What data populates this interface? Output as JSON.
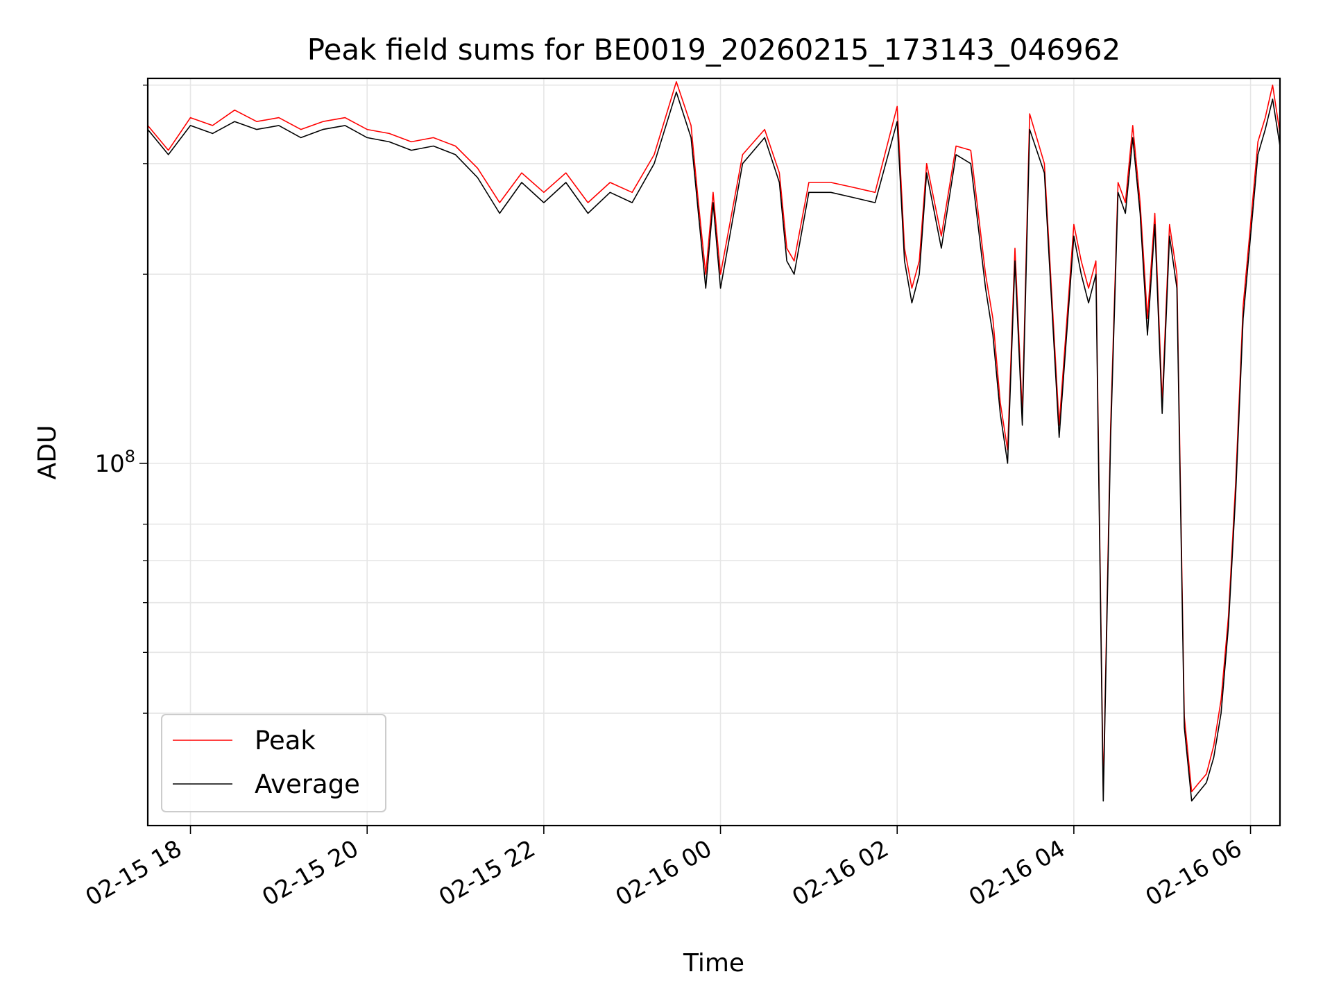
{
  "chart_data": {
    "type": "line",
    "title": "Peak field sums for BE0019_20260215_173143_046962",
    "xlabel": "Time",
    "ylabel": "ADU",
    "y_scale": "log",
    "ylim": [
      26500000,
      410000000
    ],
    "xlim": [
      "2026-02-15 17:31",
      "2026-02-16 06:20"
    ],
    "x_tick_labels": [
      "02-15 18",
      "02-15 20",
      "02-15 22",
      "02-16 00",
      "02-16 02",
      "02-16 04",
      "02-16 06"
    ],
    "x_ticks": [
      "2026-02-15 18:00",
      "2026-02-15 20:00",
      "2026-02-15 22:00",
      "2026-02-16 00:00",
      "2026-02-16 02:00",
      "2026-02-16 04:00",
      "2026-02-16 06:00"
    ],
    "y_tick_major": [
      {
        "value": 100000000,
        "base": "10",
        "exponent": "8"
      }
    ],
    "y_tick_minor": [
      40000000,
      50000000,
      60000000,
      70000000,
      80000000,
      200000000,
      300000000,
      400000000
    ],
    "grid": true,
    "legend_position": "lower-left",
    "series": [
      {
        "name": "Peak",
        "color": "#ff0000"
      },
      {
        "name": "Average",
        "color": "#000000"
      }
    ],
    "x": [
      "17:31",
      "17:45",
      "18:00",
      "18:15",
      "18:30",
      "18:45",
      "19:00",
      "19:15",
      "19:30",
      "19:45",
      "20:00",
      "20:15",
      "20:30",
      "20:45",
      "21:00",
      "21:15",
      "21:30",
      "21:45",
      "22:00",
      "22:15",
      "22:30",
      "22:45",
      "23:00",
      "23:15",
      "23:30",
      "23:40",
      "23:45",
      "23:50",
      "23:55",
      "00:00",
      "00:15",
      "00:30",
      "00:40",
      "00:45",
      "00:50",
      "01:00",
      "01:15",
      "01:30",
      "01:45",
      "02:00",
      "02:05",
      "02:10",
      "02:15",
      "02:20",
      "02:30",
      "02:40",
      "02:50",
      "03:00",
      "03:05",
      "03:10",
      "03:15",
      "03:20",
      "03:25",
      "03:30",
      "03:40",
      "03:50",
      "04:00",
      "04:05",
      "04:10",
      "04:15",
      "04:20",
      "04:25",
      "04:30",
      "04:35",
      "04:40",
      "04:45",
      "04:50",
      "04:55",
      "05:00",
      "05:05",
      "05:10",
      "05:15",
      "05:20",
      "05:25",
      "05:30",
      "05:35",
      "05:40",
      "05:45",
      "05:50",
      "05:55",
      "06:00",
      "06:05",
      "06:10",
      "06:15",
      "06:20"
    ],
    "average": [
      340000000,
      310000000,
      345000000,
      335000000,
      350000000,
      340000000,
      345000000,
      330000000,
      340000000,
      345000000,
      330000000,
      325000000,
      315000000,
      320000000,
      310000000,
      285000000,
      250000000,
      280000000,
      260000000,
      280000000,
      250000000,
      270000000,
      260000000,
      300000000,
      390000000,
      330000000,
      250000000,
      190000000,
      260000000,
      190000000,
      300000000,
      330000000,
      280000000,
      210000000,
      200000000,
      270000000,
      270000000,
      265000000,
      260000000,
      350000000,
      210000000,
      180000000,
      200000000,
      290000000,
      220000000,
      310000000,
      300000000,
      190000000,
      160000000,
      120000000,
      100000000,
      210000000,
      115000000,
      340000000,
      290000000,
      110000000,
      230000000,
      200000000,
      180000000,
      200000000,
      29000000,
      110000000,
      270000000,
      250000000,
      330000000,
      250000000,
      160000000,
      240000000,
      120000000,
      230000000,
      190000000,
      38000000,
      29000000,
      30000000,
      31000000,
      34000000,
      40000000,
      55000000,
      90000000,
      170000000,
      230000000,
      310000000,
      340000000,
      380000000,
      320000000
    ],
    "peak": [
      345000000,
      315000000,
      355000000,
      345000000,
      365000000,
      350000000,
      355000000,
      340000000,
      350000000,
      355000000,
      340000000,
      335000000,
      325000000,
      330000000,
      320000000,
      295000000,
      260000000,
      290000000,
      270000000,
      290000000,
      260000000,
      280000000,
      270000000,
      310000000,
      405000000,
      345000000,
      260000000,
      200000000,
      270000000,
      200000000,
      310000000,
      340000000,
      290000000,
      220000000,
      210000000,
      280000000,
      280000000,
      275000000,
      270000000,
      370000000,
      220000000,
      190000000,
      210000000,
      300000000,
      230000000,
      320000000,
      315000000,
      200000000,
      170000000,
      125000000,
      105000000,
      220000000,
      120000000,
      360000000,
      300000000,
      115000000,
      240000000,
      210000000,
      190000000,
      210000000,
      30000000,
      115000000,
      280000000,
      260000000,
      345000000,
      260000000,
      170000000,
      250000000,
      125000000,
      240000000,
      200000000,
      39500000,
      30000000,
      31000000,
      32000000,
      35500000,
      42000000,
      57000000,
      94000000,
      178000000,
      240000000,
      325000000,
      355000000,
      400000000,
      335000000
    ]
  }
}
